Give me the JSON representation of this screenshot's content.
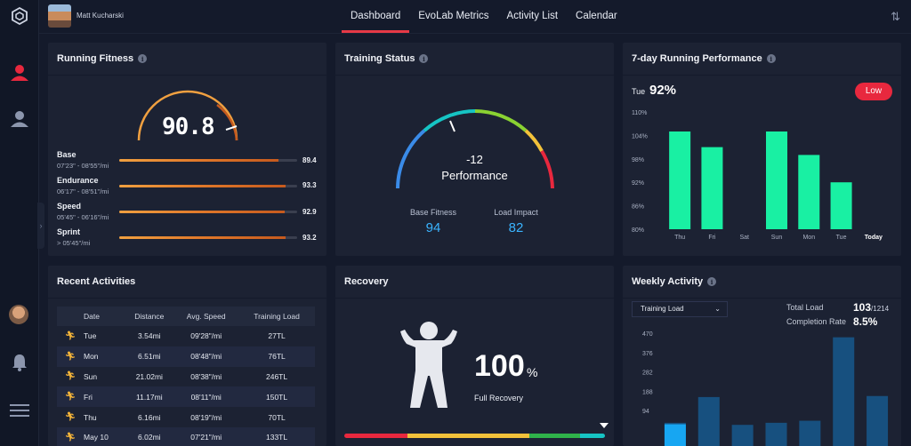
{
  "user": {
    "name": "Matt Kucharski"
  },
  "nav": {
    "tabs": [
      "Dashboard",
      "EvoLab Metrics",
      "Activity List",
      "Calendar"
    ],
    "active": "Dashboard"
  },
  "colors": {
    "accent": "#e63946",
    "green": "#19f0a3",
    "blue": "#3ab4ff",
    "orange": "#e0782a"
  },
  "running_fitness": {
    "title": "Running Fitness",
    "score": "90.8",
    "rows": [
      {
        "name": "Base",
        "range": "07'23\" - 08'55\"/mi",
        "value": "89.4",
        "level": 0.893
      },
      {
        "name": "Endurance",
        "range": "06'17\" - 08'51\"/mi",
        "value": "93.3",
        "level": 0.935
      },
      {
        "name": "Speed",
        "range": "05'45\" - 06'16\"/mi",
        "value": "92.9",
        "level": 0.93
      },
      {
        "name": "Sprint",
        "range": "> 05'45\"/mi",
        "value": "93.2",
        "level": 0.935
      }
    ]
  },
  "training_status": {
    "title": "Training Status",
    "value": "-12",
    "label": "Performance",
    "base_fitness_label": "Base Fitness",
    "base_fitness": "94",
    "load_impact_label": "Load Impact",
    "load_impact": "82"
  },
  "performance": {
    "title": "7-day Running Performance",
    "day": "Tue",
    "value": "92%",
    "badge": "Low"
  },
  "chart_data": [
    {
      "type": "bar",
      "title": "7-day Running Performance",
      "categories": [
        "Thu",
        "Fri",
        "Sat",
        "Sun",
        "Mon",
        "Tue",
        "Today"
      ],
      "values": [
        105,
        101,
        null,
        105,
        99,
        92,
        null
      ],
      "yticks": [
        "110%",
        "104%",
        "98%",
        "92%",
        "86%",
        "80%"
      ],
      "ylim": [
        80,
        110
      ],
      "color": "#19f0a3"
    },
    {
      "type": "bar",
      "title": "Weekly Activity",
      "values": [
        35,
        160,
        25,
        35,
        45,
        450,
        165
      ],
      "yticks": [
        "470",
        "376",
        "282",
        "188",
        "94"
      ],
      "ylim": [
        0,
        470
      ],
      "color": "#17507f"
    }
  ],
  "recent_activities": {
    "title": "Recent Activities",
    "headers": [
      "Date",
      "Distance",
      "Avg. Speed",
      "Training Load"
    ],
    "rows": [
      [
        "Tue",
        "3.54mi",
        "09'28\"/mi",
        "27TL"
      ],
      [
        "Mon",
        "6.51mi",
        "08'48\"/mi",
        "76TL"
      ],
      [
        "Sun",
        "21.02mi",
        "08'38\"/mi",
        "246TL"
      ],
      [
        "Fri",
        "11.17mi",
        "08'11\"/mi",
        "150TL"
      ],
      [
        "Thu",
        "6.16mi",
        "08'19\"/mi",
        "70TL"
      ],
      [
        "May 10",
        "6.02mi",
        "07'21\"/mi",
        "133TL"
      ]
    ]
  },
  "recovery": {
    "title": "Recovery",
    "value": "100",
    "unit": "%",
    "label": "Full Recovery"
  },
  "weekly": {
    "title": "Weekly Activity",
    "select": "Training Load",
    "total_load_label": "Total Load",
    "total_load": "103",
    "total_load_max": "/1214",
    "completion_label": "Completion Rate",
    "completion": "8.5%"
  }
}
